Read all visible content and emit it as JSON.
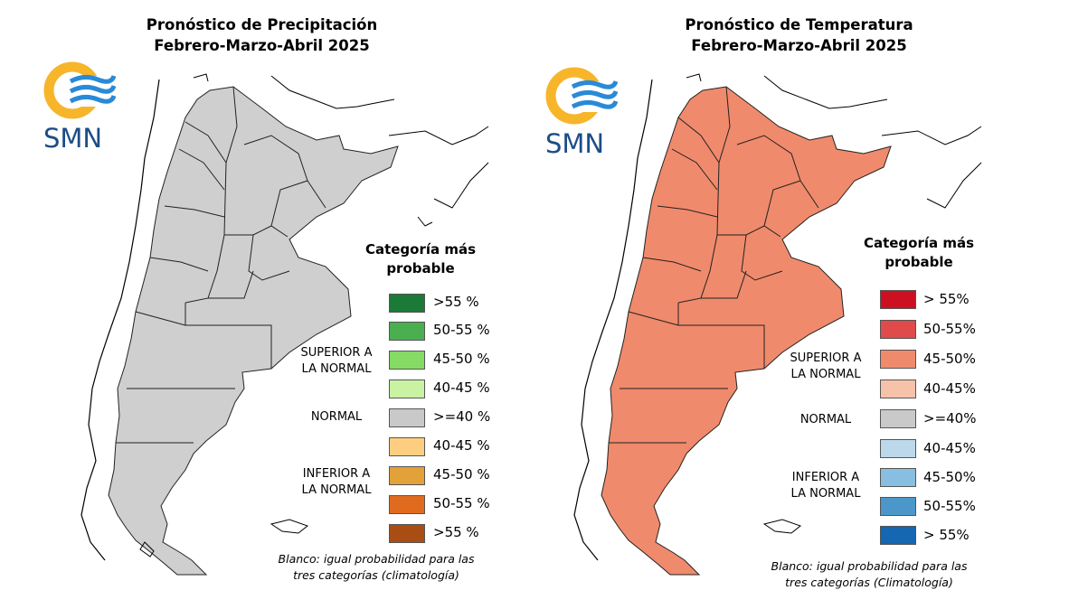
{
  "panels": [
    {
      "title_line1": "Pronóstico de Precipitación",
      "title_line2": "Febrero-Marzo-Abril 2025",
      "logo_text": "SMN",
      "legend_title": "Categoría más probable",
      "legend_items": [
        {
          "label": ">55 %",
          "color": "#1b7a37"
        },
        {
          "label": "50-55 %",
          "color": "#4aaf4f"
        },
        {
          "label": "45-50 %",
          "color": "#86da66"
        },
        {
          "label": "40-45 %",
          "color": "#c9f2a3"
        },
        {
          "label": ">=40 %",
          "color": "#c9c9c9"
        },
        {
          "label": "40-45 %",
          "color": "#fdce80"
        },
        {
          "label": "45-50 %",
          "color": "#e3a13a"
        },
        {
          "label": "50-55 %",
          "color": "#e06a1e"
        },
        {
          "label": ">55 %",
          "color": "#a84e14"
        }
      ],
      "categories": {
        "superior": "SUPERIOR A\nLA NORMAL",
        "normal": "NORMAL",
        "inferior": "INFERIOR A\nLA NORMAL"
      },
      "note": "Blanco: igual probabilidad para las tres categorías (climatología)"
    },
    {
      "title_line1": "Pronóstico de Temperatura",
      "title_line2": "Febrero-Marzo-Abril 2025",
      "logo_text": "SMN",
      "legend_title": "Categoría más probable",
      "legend_items": [
        {
          "label": "> 55%",
          "color": "#cc1022"
        },
        {
          "label": "50-55%",
          "color": "#e04a4a"
        },
        {
          "label": "45-50%",
          "color": "#f08a6c"
        },
        {
          "label": "40-45%",
          "color": "#f6c3aa"
        },
        {
          "label": ">=40%",
          "color": "#c9c9c9"
        },
        {
          "label": "40-45%",
          "color": "#bcd8ea"
        },
        {
          "label": "45-50%",
          "color": "#88bedf"
        },
        {
          "label": "50-55%",
          "color": "#4b97c9"
        },
        {
          "label": "> 55%",
          "color": "#1467b0"
        }
      ],
      "categories": {
        "superior": "SUPERIOR A\nLA NORMAL",
        "normal": "NORMAL",
        "inferior": "INFERIOR A\nLA NORMAL"
      },
      "note": "Blanco: igual probabilidad para las tres categorías (Climatología)"
    }
  ],
  "map_colors": {
    "precip_wet": "#86da66",
    "precip_normal": "#cfcfcf",
    "precip_dry": "#fdce80",
    "temp_above": "#f08a6c",
    "temp_light": "#f6c3aa",
    "logo_yellow": "#f7b52a",
    "logo_blue": "#2a8ad6"
  }
}
